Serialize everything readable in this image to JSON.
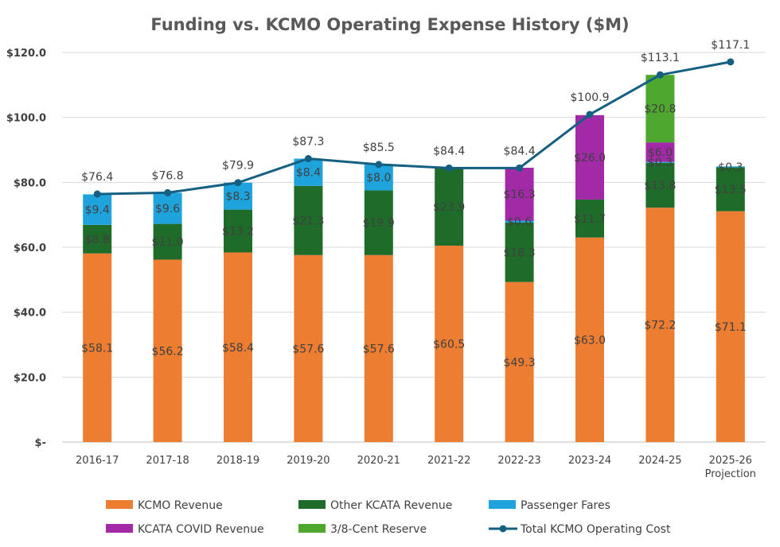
{
  "chart_data": {
    "type": "bar",
    "stacked": true,
    "title": "Funding vs. KCMO Operating Expense History ($M)",
    "xlabel": "",
    "ylabel": "",
    "ylim": [
      0,
      120
    ],
    "yticks": [
      0,
      20,
      40,
      60,
      80,
      100,
      120
    ],
    "ytick_labels": [
      "$-",
      "$20.0",
      "$40.0",
      "$60.0",
      "$80.0",
      "$100.0",
      "$120.0"
    ],
    "grid": true,
    "legend_position": "bottom",
    "categories": [
      [
        "2016-17"
      ],
      [
        "2017-18"
      ],
      [
        "2018-19"
      ],
      [
        "2019-20"
      ],
      [
        "2020-21"
      ],
      [
        "2021-22"
      ],
      [
        "2022-23"
      ],
      [
        "2023-24"
      ],
      [
        "2024-25"
      ],
      [
        "2025-26",
        "Projection"
      ]
    ],
    "series": [
      {
        "name": "KCMO Revenue",
        "color": "#ED7D31",
        "values": [
          58.1,
          56.2,
          58.4,
          57.6,
          57.6,
          60.5,
          49.3,
          63.0,
          72.2,
          71.1
        ],
        "labels": [
          "$58.1",
          "$56.2",
          "$58.4",
          "$57.6",
          "$57.6",
          "$60.5",
          "$49.3",
          "$63.0",
          "$72.2",
          "$71.1"
        ]
      },
      {
        "name": "Other KCATA Revenue",
        "color": "#1F6B2A",
        "values": [
          8.8,
          11.0,
          13.2,
          21.3,
          19.9,
          23.9,
          18.3,
          11.7,
          13.8,
          13.5
        ],
        "labels": [
          "$8.8",
          "$11.0",
          "$13.2",
          "$21.3",
          "$19.9",
          "$23.9",
          "$18.3",
          "$11.7",
          "$13.8",
          "$13.5"
        ]
      },
      {
        "name": "Passenger Fares",
        "color": "#1FA3DD",
        "values": [
          9.4,
          9.6,
          8.3,
          8.4,
          8.0,
          0,
          0.6,
          0,
          0.3,
          0.3
        ],
        "labels": [
          "$9.4",
          "$9.6",
          "$8.3",
          "$8.4",
          "$8.0",
          "",
          "$0.6",
          "",
          "$0.3",
          "$0.3"
        ]
      },
      {
        "name": "KCATA COVID Revenue",
        "color": "#A22AA6",
        "values": [
          0,
          0,
          0,
          0,
          0,
          0,
          16.3,
          26.0,
          6.0,
          0
        ],
        "labels": [
          "",
          "",
          "",
          "",
          "",
          "",
          "$16.3",
          "$26.0",
          "$6.0",
          ""
        ]
      },
      {
        "name": "3/8-Cent Reserve",
        "color": "#4EA72E",
        "values": [
          0,
          0,
          0,
          0,
          0,
          0,
          0,
          0,
          20.8,
          0
        ],
        "labels": [
          "",
          "",
          "",
          "",
          "",
          "",
          "",
          "",
          "$20.8",
          ""
        ]
      }
    ],
    "line": {
      "name": "Total KCMO Operating Cost",
      "color": "#156082",
      "values": [
        76.4,
        76.8,
        79.9,
        87.3,
        85.5,
        84.4,
        84.4,
        100.9,
        113.1,
        117.1
      ],
      "labels": [
        "$76.4",
        "$76.8",
        "$79.9",
        "$87.3",
        "$85.5",
        "$84.4",
        "$84.4",
        "$100.9",
        "$113.1",
        "$117.1"
      ]
    },
    "legend_order": [
      "KCMO Revenue",
      "Other KCATA Revenue",
      "Passenger Fares",
      "KCATA COVID Revenue",
      "3/8-Cent Reserve",
      "Total KCMO Operating Cost"
    ]
  }
}
